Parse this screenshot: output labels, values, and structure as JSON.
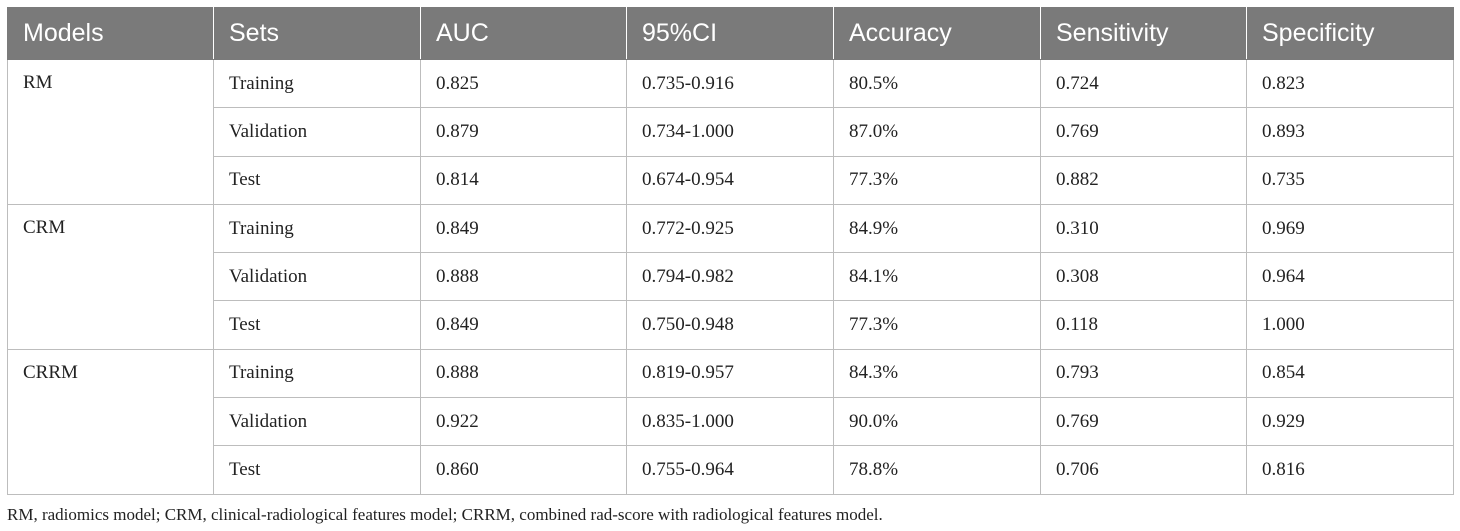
{
  "table": {
    "headers": [
      "Models",
      "Sets",
      "AUC",
      "95%CI",
      "Accuracy",
      "Sensitivity",
      "Specificity"
    ],
    "groups": [
      {
        "model": "RM",
        "rows": [
          {
            "set": "Training",
            "auc": "0.825",
            "ci": "0.735-0.916",
            "accuracy": "80.5%",
            "sensitivity": "0.724",
            "specificity": "0.823"
          },
          {
            "set": "Validation",
            "auc": "0.879",
            "ci": "0.734-1.000",
            "accuracy": "87.0%",
            "sensitivity": "0.769",
            "specificity": "0.893"
          },
          {
            "set": "Test",
            "auc": "0.814",
            "ci": "0.674-0.954",
            "accuracy": "77.3%",
            "sensitivity": "0.882",
            "specificity": "0.735"
          }
        ]
      },
      {
        "model": "CRM",
        "rows": [
          {
            "set": "Training",
            "auc": "0.849",
            "ci": "0.772-0.925",
            "accuracy": "84.9%",
            "sensitivity": "0.310",
            "specificity": "0.969"
          },
          {
            "set": "Validation",
            "auc": "0.888",
            "ci": "0.794-0.982",
            "accuracy": "84.1%",
            "sensitivity": "0.308",
            "specificity": "0.964"
          },
          {
            "set": "Test",
            "auc": "0.849",
            "ci": "0.750-0.948",
            "accuracy": "77.3%",
            "sensitivity": "0.118",
            "specificity": "1.000"
          }
        ]
      },
      {
        "model": "CRRM",
        "rows": [
          {
            "set": "Training",
            "auc": "0.888",
            "ci": "0.819-0.957",
            "accuracy": "84.3%",
            "sensitivity": "0.793",
            "specificity": "0.854"
          },
          {
            "set": "Validation",
            "auc": "0.922",
            "ci": "0.835-1.000",
            "accuracy": "90.0%",
            "sensitivity": "0.769",
            "specificity": "0.929"
          },
          {
            "set": "Test",
            "auc": "0.860",
            "ci": "0.755-0.964",
            "accuracy": "78.8%",
            "sensitivity": "0.706",
            "specificity": "0.816"
          }
        ]
      }
    ]
  },
  "footnote": "RM, radiomics model; CRM, clinical-radiological features model; CRRM, combined rad-score with radiological features model.",
  "colors": {
    "header_bg": "#7a7a7a",
    "header_text": "#ffffff",
    "grid_line": "#bdbdbd",
    "body_text": "#222222"
  }
}
